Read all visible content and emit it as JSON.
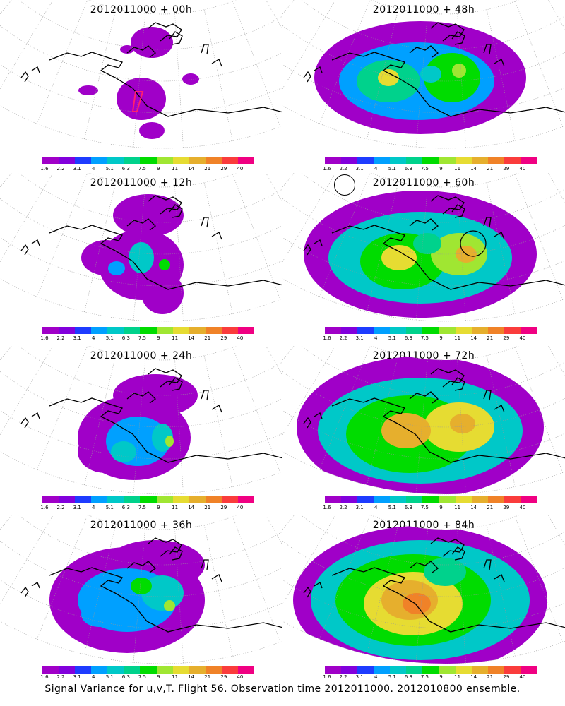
{
  "colorbar": {
    "labels": [
      "1.6",
      "2.2",
      "3.1",
      "4",
      "5.1",
      "6.3",
      "7.5",
      "9",
      "11",
      "14",
      "21",
      "29",
      "40"
    ],
    "colors": [
      "#a000c8",
      "#8200dc",
      "#1e3cff",
      "#00a0ff",
      "#00c8c8",
      "#00d28c",
      "#00dc00",
      "#a0e632",
      "#e6dc32",
      "#e6af2d",
      "#f08228",
      "#fa3c3c",
      "#f00082"
    ]
  },
  "panels": [
    {
      "title": "2012011000 + 00h",
      "level": 0
    },
    {
      "title": "2012011000 + 48h",
      "level": 4
    },
    {
      "title": "2012011000 + 12h",
      "level": 1
    },
    {
      "title": "2012011000 + 60h",
      "level": 5
    },
    {
      "title": "2012011000 + 24h",
      "level": 2
    },
    {
      "title": "2012011000 + 72h",
      "level": 6
    },
    {
      "title": "2012011000 + 36h",
      "level": 3
    },
    {
      "title": "2012011000 + 84h",
      "level": 7
    }
  ],
  "caption": "Signal Variance for u,v,T. Flight 56. Observation time 2012011000. 2012010800 ensemble."
}
